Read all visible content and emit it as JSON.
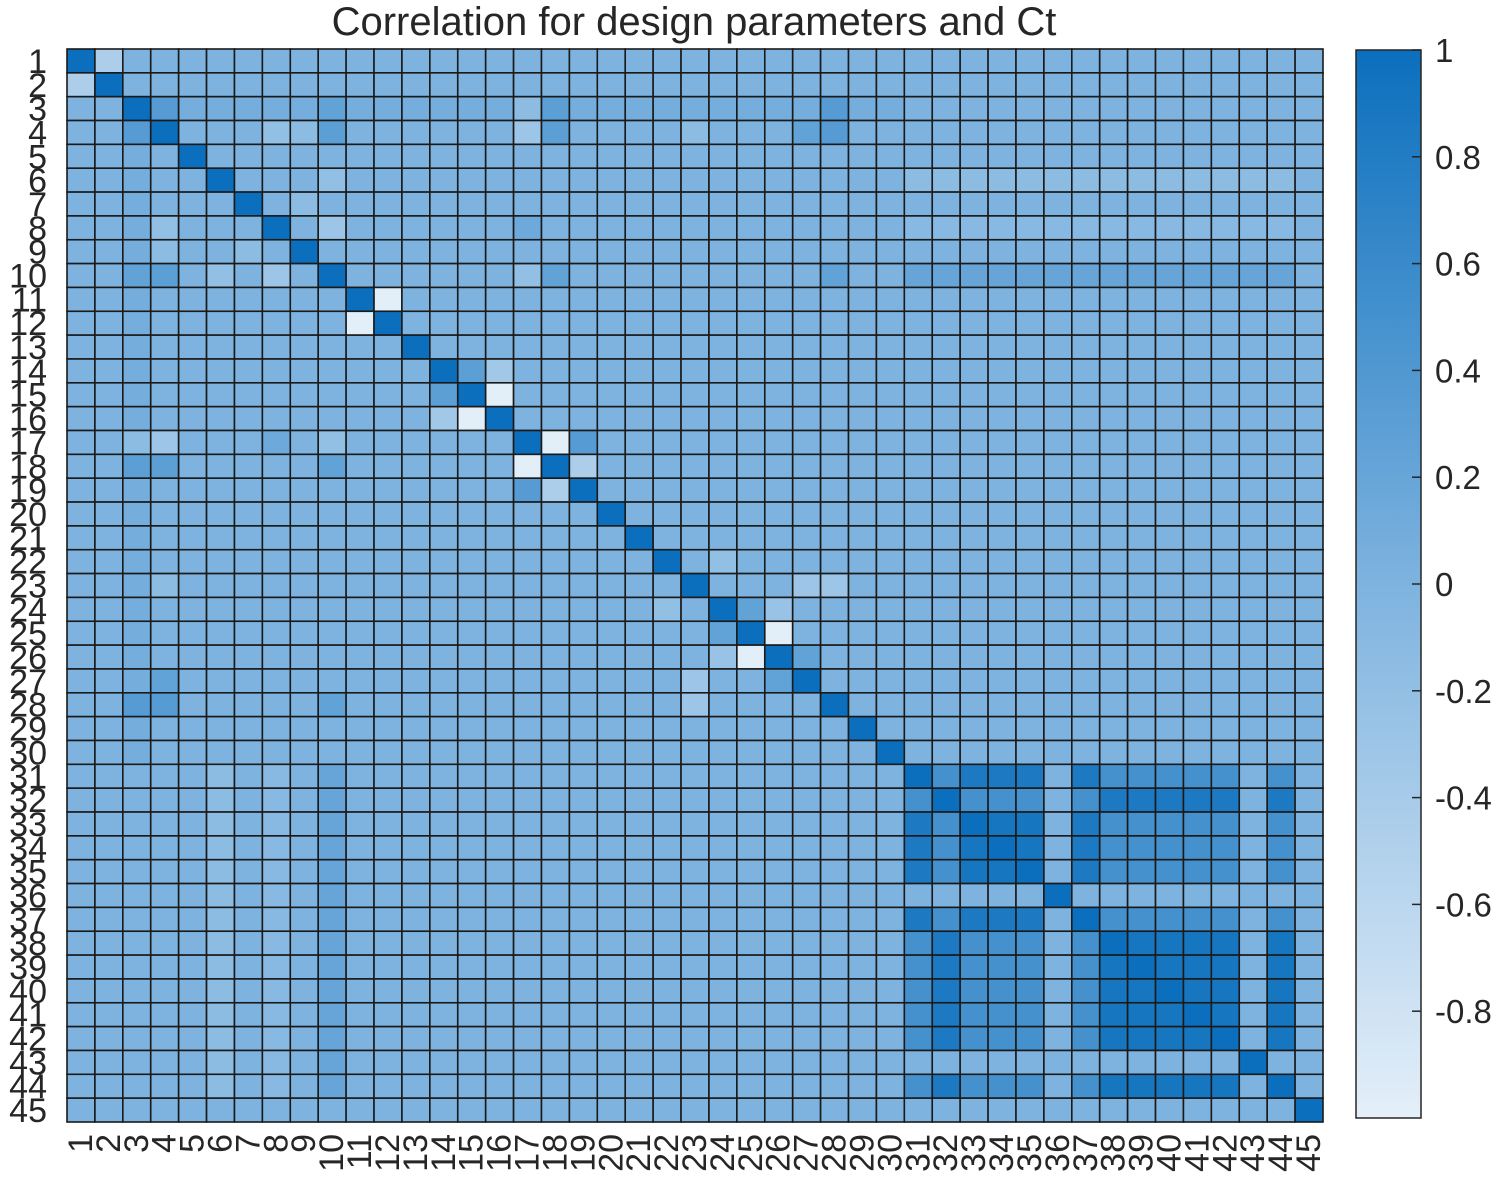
{
  "chart_data": {
    "type": "heatmap",
    "title": "Correlation for design parameters and Ct",
    "labels": [
      "1",
      "2",
      "3",
      "4",
      "5",
      "6",
      "7",
      "8",
      "9",
      "10",
      "11",
      "12",
      "13",
      "14",
      "15",
      "16",
      "17",
      "18",
      "19",
      "20",
      "21",
      "22",
      "23",
      "24",
      "25",
      "26",
      "27",
      "28",
      "29",
      "30",
      "31",
      "32",
      "33",
      "34",
      "35",
      "36",
      "37",
      "38",
      "39",
      "40",
      "41",
      "42",
      "43",
      "44",
      "45"
    ],
    "n": 45,
    "baseline_value": 0.0,
    "diagonal_value": 1.0,
    "color_range": [
      -1,
      1
    ],
    "colorbar_ticks": [
      "1",
      "0.8",
      "0.6",
      "0.4",
      "0.2",
      "0",
      "-0.2",
      "-0.4",
      "-0.6",
      "-0.8"
    ],
    "colorbar_tick_values": [
      1,
      0.8,
      0.6,
      0.4,
      0.2,
      0,
      -0.2,
      -0.4,
      -0.6,
      -0.8
    ],
    "colors": {
      "low": "#e4eff9",
      "mid": "#7eb3df",
      "high": "#0b6fbd",
      "grid": "#1a1a1a"
    },
    "notable_pairs": [
      [
        1,
        2,
        -0.45
      ],
      [
        3,
        4,
        0.35
      ],
      [
        3,
        10,
        0.25
      ],
      [
        3,
        17,
        -0.15
      ],
      [
        3,
        18,
        0.3
      ],
      [
        3,
        28,
        0.35
      ],
      [
        4,
        8,
        -0.2
      ],
      [
        4,
        9,
        -0.15
      ],
      [
        4,
        10,
        0.3
      ],
      [
        4,
        17,
        -0.3
      ],
      [
        4,
        18,
        0.3
      ],
      [
        4,
        23,
        -0.15
      ],
      [
        4,
        27,
        0.25
      ],
      [
        4,
        28,
        0.35
      ],
      [
        6,
        10,
        -0.2
      ],
      [
        8,
        10,
        -0.3
      ],
      [
        8,
        17,
        0.15
      ],
      [
        7,
        9,
        -0.15
      ],
      [
        10,
        17,
        -0.2
      ],
      [
        10,
        18,
        0.25
      ],
      [
        10,
        28,
        0.25
      ],
      [
        11,
        12,
        -0.98
      ],
      [
        14,
        15,
        0.3
      ],
      [
        14,
        16,
        -0.35
      ],
      [
        15,
        16,
        -0.98
      ],
      [
        17,
        18,
        -0.98
      ],
      [
        17,
        19,
        0.35
      ],
      [
        18,
        19,
        -0.45
      ],
      [
        22,
        24,
        -0.2
      ],
      [
        23,
        27,
        -0.3
      ],
      [
        23,
        28,
        -0.3
      ],
      [
        24,
        25,
        0.25
      ],
      [
        24,
        26,
        -0.25
      ],
      [
        25,
        26,
        -0.98
      ],
      [
        26,
        27,
        0.25
      ],
      [
        31,
        32,
        0.5
      ],
      [
        31,
        33,
        0.85
      ],
      [
        31,
        34,
        0.85
      ],
      [
        31,
        35,
        0.85
      ],
      [
        31,
        37,
        0.85
      ],
      [
        31,
        38,
        0.5
      ],
      [
        31,
        39,
        0.5
      ],
      [
        31,
        40,
        0.5
      ],
      [
        31,
        41,
        0.5
      ],
      [
        31,
        42,
        0.5
      ],
      [
        31,
        44,
        0.5
      ],
      [
        32,
        33,
        0.5
      ],
      [
        32,
        34,
        0.5
      ],
      [
        32,
        35,
        0.5
      ],
      [
        32,
        37,
        0.5
      ],
      [
        32,
        38,
        0.85
      ],
      [
        32,
        39,
        0.85
      ],
      [
        32,
        40,
        0.85
      ],
      [
        32,
        41,
        0.85
      ],
      [
        32,
        42,
        0.85
      ],
      [
        32,
        44,
        0.85
      ],
      [
        33,
        34,
        0.9
      ],
      [
        33,
        35,
        0.9
      ],
      [
        33,
        37,
        0.85
      ],
      [
        33,
        38,
        0.5
      ],
      [
        33,
        39,
        0.5
      ],
      [
        33,
        40,
        0.5
      ],
      [
        33,
        41,
        0.5
      ],
      [
        33,
        42,
        0.5
      ],
      [
        33,
        44,
        0.5
      ],
      [
        34,
        35,
        0.9
      ],
      [
        34,
        37,
        0.85
      ],
      [
        34,
        38,
        0.5
      ],
      [
        34,
        39,
        0.5
      ],
      [
        34,
        40,
        0.5
      ],
      [
        34,
        41,
        0.5
      ],
      [
        34,
        42,
        0.5
      ],
      [
        34,
        44,
        0.5
      ],
      [
        35,
        37,
        0.85
      ],
      [
        35,
        38,
        0.5
      ],
      [
        35,
        39,
        0.5
      ],
      [
        35,
        40,
        0.5
      ],
      [
        35,
        41,
        0.5
      ],
      [
        35,
        42,
        0.5
      ],
      [
        35,
        44,
        0.5
      ],
      [
        37,
        38,
        0.5
      ],
      [
        37,
        39,
        0.5
      ],
      [
        37,
        40,
        0.5
      ],
      [
        37,
        41,
        0.5
      ],
      [
        37,
        42,
        0.5
      ],
      [
        37,
        44,
        0.5
      ],
      [
        38,
        39,
        0.9
      ],
      [
        38,
        40,
        0.9
      ],
      [
        38,
        41,
        0.9
      ],
      [
        38,
        42,
        0.9
      ],
      [
        38,
        44,
        0.9
      ],
      [
        39,
        40,
        0.9
      ],
      [
        39,
        41,
        0.9
      ],
      [
        39,
        42,
        0.9
      ],
      [
        39,
        44,
        0.9
      ],
      [
        40,
        41,
        0.9
      ],
      [
        40,
        42,
        0.9
      ],
      [
        40,
        44,
        0.9
      ],
      [
        41,
        42,
        0.9
      ],
      [
        41,
        44,
        0.9
      ],
      [
        42,
        44,
        0.9
      ]
    ],
    "notable_rows": [
      {
        "row": 10,
        "from": 31,
        "to": 44,
        "value": 0.2
      },
      {
        "row": 6,
        "from": 31,
        "to": 44,
        "value": -0.15
      },
      {
        "row": 8,
        "from": 31,
        "to": 44,
        "value": -0.1
      },
      {
        "row": 3,
        "from": 5,
        "to": 30,
        "value": 0.08
      }
    ],
    "grid": true,
    "colorbar": "right"
  }
}
